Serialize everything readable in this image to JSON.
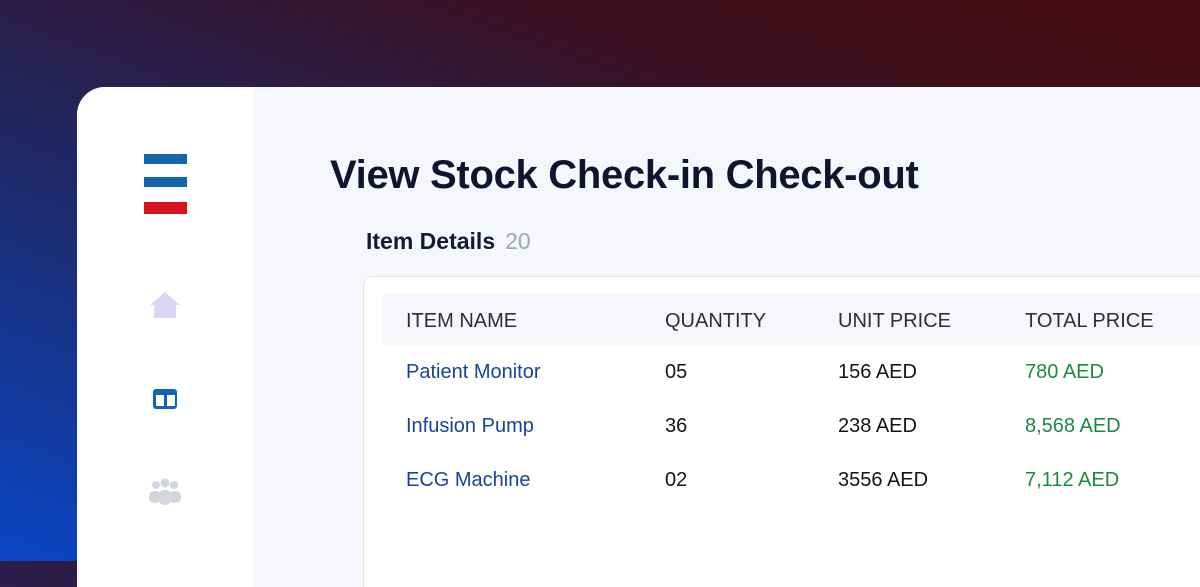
{
  "page": {
    "title": "View Stock Check-in Check-out"
  },
  "section": {
    "title": "Item Details",
    "count": "20"
  },
  "table": {
    "headers": [
      "ITEM NAME",
      "QUANTITY",
      "UNIT PRICE",
      "TOTAL PRICE"
    ],
    "rows": [
      [
        "Patient Monitor",
        "05",
        "156 AED",
        "780 AED"
      ],
      [
        "Infusion Pump",
        "36",
        "238 AED",
        "8,568 AED"
      ],
      [
        "ECG Machine",
        "02",
        "3556 AED",
        "7,112 AED"
      ]
    ]
  }
}
